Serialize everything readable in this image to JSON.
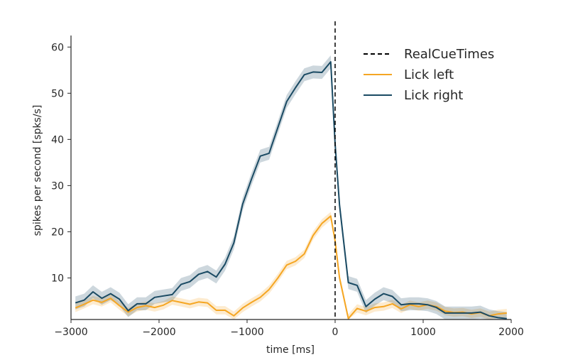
{
  "chart_data": {
    "type": "line",
    "title": "",
    "xlabel": "time [ms]",
    "ylabel": "spikes per second [spks/s]",
    "xlim": [
      -3000,
      2000
    ],
    "ylim": [
      1,
      62.5
    ],
    "xticks": [
      -3000,
      -2000,
      -1000,
      0,
      1000,
      2000
    ],
    "xtick_labels": [
      "−3000",
      "−2000",
      "−1000",
      "0",
      "1000",
      "2000"
    ],
    "yticks": [
      10,
      20,
      30,
      40,
      50,
      60
    ],
    "ytick_labels": [
      "10",
      "20",
      "30",
      "40",
      "50",
      "60"
    ],
    "grid": false,
    "legend_position": "top-right",
    "vlines": [
      {
        "name": "RealCueTimes",
        "x": 0,
        "color": "#000000",
        "style": "dashed"
      }
    ],
    "x": [
      -2950,
      -2850,
      -2750,
      -2650,
      -2550,
      -2450,
      -2350,
      -2250,
      -2150,
      -2050,
      -1950,
      -1850,
      -1750,
      -1650,
      -1550,
      -1450,
      -1350,
      -1250,
      -1150,
      -1050,
      -950,
      -850,
      -750,
      -650,
      -550,
      -450,
      -350,
      -250,
      -150,
      -50,
      0,
      50,
      150,
      250,
      350,
      450,
      550,
      650,
      750,
      850,
      950,
      1050,
      1150,
      1250,
      1350,
      1450,
      1550,
      1650,
      1750,
      1850,
      1950
    ],
    "series": [
      {
        "name": "Lick left",
        "color": "#f5a623",
        "values": [
          3.5,
          4.3,
          5.2,
          4.7,
          5.6,
          4.0,
          2.6,
          3.6,
          4.0,
          3.6,
          4.1,
          5.1,
          4.7,
          4.3,
          4.8,
          4.6,
          3.0,
          3.0,
          1.8,
          3.5,
          4.7,
          5.8,
          7.5,
          10.0,
          12.8,
          13.6,
          15.2,
          19.2,
          21.8,
          23.4,
          18.0,
          10.0,
          1.2,
          3.4,
          2.8,
          3.6,
          3.8,
          4.4,
          3.3,
          4.2,
          3.8,
          4.2,
          3.8,
          2.8,
          2.5,
          2.6,
          2.2,
          2.5,
          1.8,
          2.2,
          2.4
        ],
        "band": 0.9
      },
      {
        "name": "Lick right",
        "color": "#1a4a63",
        "values": [
          4.6,
          5.2,
          7.0,
          5.6,
          6.6,
          5.4,
          2.9,
          4.4,
          4.4,
          5.8,
          6.1,
          6.4,
          8.6,
          9.2,
          10.8,
          11.4,
          10.2,
          13.0,
          17.6,
          26.0,
          31.4,
          36.4,
          37.0,
          42.6,
          48.2,
          51.2,
          54.0,
          54.6,
          54.5,
          56.8,
          39.0,
          25.8,
          9.0,
          8.4,
          3.8,
          5.4,
          6.6,
          6.0,
          4.2,
          4.4,
          4.4,
          4.2,
          3.6,
          2.4,
          2.4,
          2.4,
          2.4,
          2.6,
          1.8,
          1.4,
          1.2
        ],
        "band": 1.4
      }
    ]
  }
}
